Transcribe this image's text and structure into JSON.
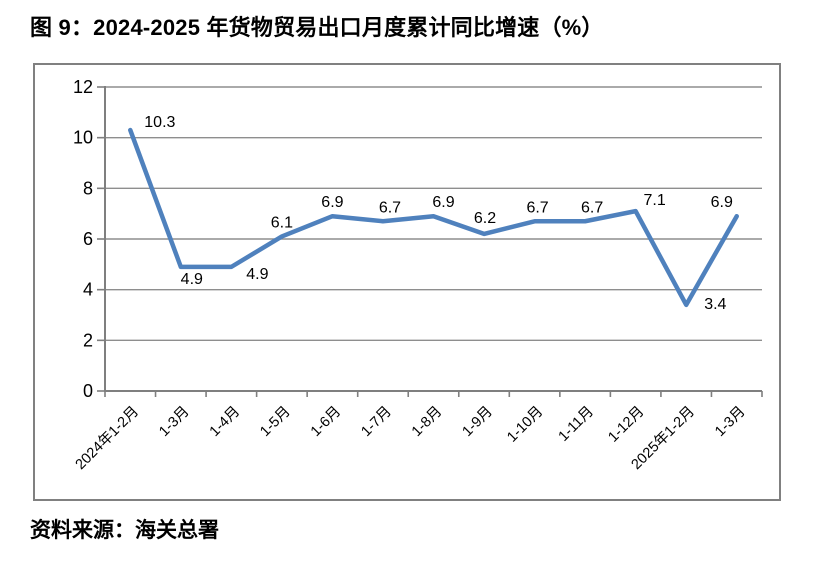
{
  "figure": {
    "title": "图 9：2024-2025 年货物贸易出口月度累计同比增速（%）",
    "source": "资料来源：海关总署"
  },
  "colors": {
    "line": "#4F81BD",
    "gridline": "#8E8E8E",
    "axis": "#7F7F7F",
    "chart_border": "#808080",
    "text": "#000000",
    "background": "#FFFFFF"
  },
  "chart_data": {
    "type": "line",
    "title": "图 9：2024-2025 年货物贸易出口月度累计同比增速（%）",
    "categories": [
      "2024年1-2月",
      "1-3月",
      "1-4月",
      "1-5月",
      "1-6月",
      "1-7月",
      "1-8月",
      "1-9月",
      "1-10月",
      "1-11月",
      "1-12月",
      "2025年1-2月",
      "1-3月"
    ],
    "values": [
      10.3,
      4.9,
      4.9,
      6.1,
      6.9,
      6.7,
      6.9,
      6.2,
      6.7,
      6.7,
      7.1,
      3.4,
      6.9
    ],
    "xlabel": "",
    "ylabel": "",
    "ylim": [
      0,
      12
    ],
    "ytick_step": 2,
    "yticks": [
      0,
      2,
      4,
      6,
      8,
      10,
      12
    ],
    "grid": true,
    "legend_position": "none",
    "data_labels_shown": true,
    "x_labels_rotated_deg": 45
  }
}
